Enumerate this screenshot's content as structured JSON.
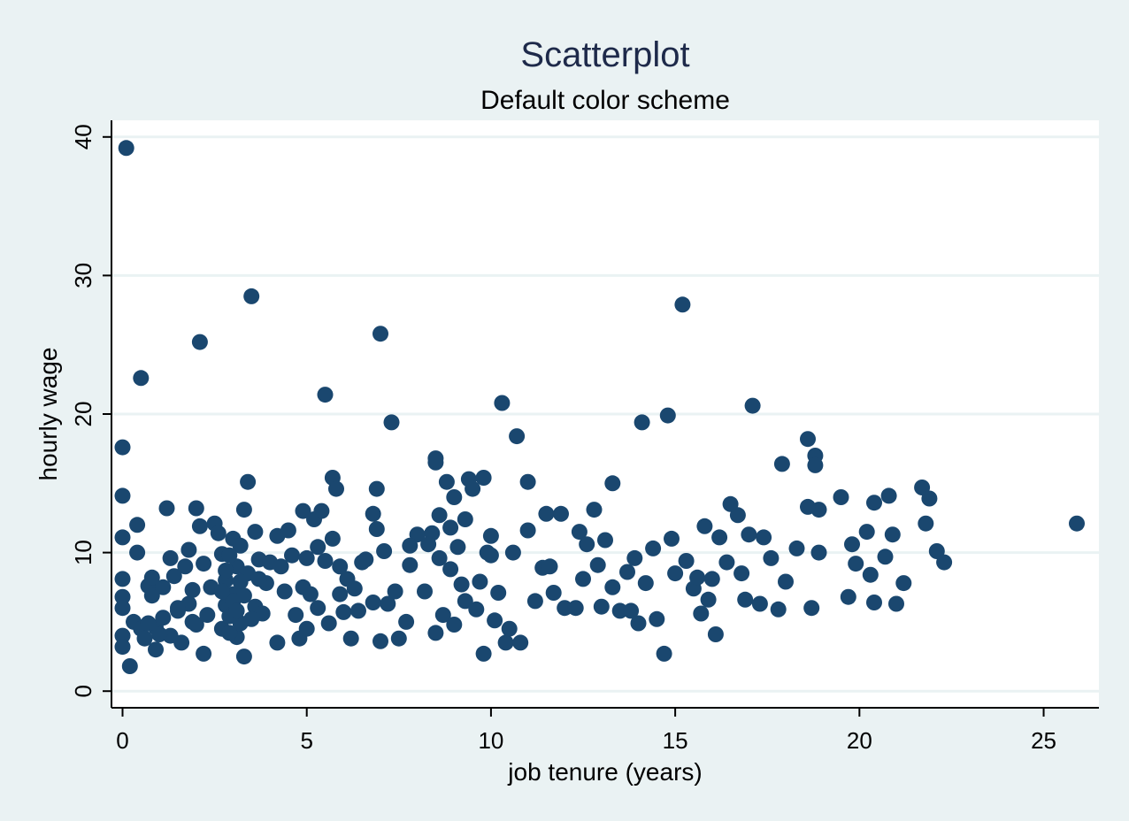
{
  "chart_data": {
    "type": "scatter",
    "title": "Scatterplot",
    "subtitle": "Default color scheme",
    "xlabel": "job tenure (years)",
    "ylabel": "hourly wage",
    "xlim": [
      -0.3,
      26.5
    ],
    "ylim": [
      -1.2,
      41.2
    ],
    "xticks": [
      "0",
      "5",
      "10",
      "15",
      "20",
      "25"
    ],
    "yticks": [
      "0",
      "10",
      "20",
      "30",
      "40"
    ],
    "grid": "horizontal",
    "legend": "none",
    "colors": {
      "background": "#eaf2f3",
      "plot_area": "#ffffff",
      "marker": "#1a476f",
      "title": "#1e2a4a",
      "gridline": "#eaf2f3"
    },
    "points": [
      [
        0.1,
        39.2
      ],
      [
        0.5,
        22.6
      ],
      [
        0.0,
        17.6
      ],
      [
        0.0,
        14.1
      ],
      [
        0.0,
        11.1
      ],
      [
        0.0,
        8.1
      ],
      [
        0.0,
        6.8
      ],
      [
        0.0,
        6.0
      ],
      [
        0.0,
        4.0
      ],
      [
        0.0,
        3.2
      ],
      [
        0.2,
        1.8
      ],
      [
        0.4,
        12.0
      ],
      [
        0.4,
        10.0
      ],
      [
        0.3,
        5.0
      ],
      [
        0.5,
        4.5
      ],
      [
        0.6,
        3.8
      ],
      [
        0.7,
        7.6
      ],
      [
        0.8,
        8.2
      ],
      [
        0.8,
        6.9
      ],
      [
        0.9,
        4.6
      ],
      [
        0.9,
        3.0
      ],
      [
        1.1,
        5.3
      ],
      [
        1.1,
        7.5
      ],
      [
        1.2,
        13.2
      ],
      [
        1.3,
        9.6
      ],
      [
        1.3,
        4.0
      ],
      [
        1.4,
        8.3
      ],
      [
        1.5,
        5.8
      ],
      [
        1.6,
        3.5
      ],
      [
        1.7,
        9.0
      ],
      [
        1.8,
        10.2
      ],
      [
        1.8,
        6.3
      ],
      [
        1.9,
        7.3
      ],
      [
        2.0,
        13.2
      ],
      [
        2.0,
        4.8
      ],
      [
        2.1,
        25.2
      ],
      [
        2.1,
        11.9
      ],
      [
        2.2,
        9.2
      ],
      [
        2.2,
        2.7
      ],
      [
        2.3,
        5.5
      ],
      [
        2.4,
        7.5
      ],
      [
        2.5,
        12.1
      ],
      [
        2.6,
        11.4
      ],
      [
        2.7,
        4.5
      ],
      [
        2.7,
        9.9
      ],
      [
        2.8,
        8.0
      ],
      [
        2.8,
        6.2
      ],
      [
        2.9,
        5.4
      ],
      [
        3.0,
        11.0
      ],
      [
        3.0,
        7.0
      ],
      [
        3.1,
        3.9
      ],
      [
        3.1,
        9.0
      ],
      [
        3.2,
        4.9
      ],
      [
        3.2,
        10.5
      ],
      [
        3.3,
        2.5
      ],
      [
        3.3,
        13.1
      ],
      [
        3.4,
        8.5
      ],
      [
        3.4,
        15.1
      ],
      [
        3.5,
        28.5
      ],
      [
        3.6,
        11.5
      ],
      [
        3.6,
        6.1
      ],
      [
        3.7,
        9.5
      ],
      [
        3.8,
        5.6
      ],
      [
        3.9,
        7.8
      ],
      [
        4.0,
        9.3
      ],
      [
        4.2,
        3.5
      ],
      [
        4.2,
        11.2
      ],
      [
        4.4,
        7.2
      ],
      [
        4.5,
        11.6
      ],
      [
        4.6,
        9.8
      ],
      [
        4.7,
        5.5
      ],
      [
        4.8,
        3.8
      ],
      [
        4.9,
        13.0
      ],
      [
        5.0,
        9.6
      ],
      [
        5.0,
        4.5
      ],
      [
        5.1,
        7.0
      ],
      [
        5.2,
        12.4
      ],
      [
        5.3,
        6.0
      ],
      [
        5.4,
        13.0
      ],
      [
        5.5,
        21.4
      ],
      [
        5.5,
        9.4
      ],
      [
        5.6,
        4.9
      ],
      [
        5.7,
        15.4
      ],
      [
        5.7,
        11.0
      ],
      [
        5.8,
        14.6
      ],
      [
        5.9,
        7.0
      ],
      [
        6.0,
        5.7
      ],
      [
        6.1,
        8.1
      ],
      [
        6.2,
        3.8
      ],
      [
        6.3,
        7.4
      ],
      [
        6.5,
        9.3
      ],
      [
        6.8,
        12.8
      ],
      [
        6.8,
        6.4
      ],
      [
        6.9,
        14.6
      ],
      [
        6.9,
        11.7
      ],
      [
        7.0,
        25.8
      ],
      [
        7.0,
        3.6
      ],
      [
        7.1,
        10.1
      ],
      [
        7.2,
        6.3
      ],
      [
        7.3,
        19.4
      ],
      [
        7.4,
        7.2
      ],
      [
        7.5,
        3.8
      ],
      [
        7.7,
        5.0
      ],
      [
        7.8,
        9.1
      ],
      [
        8.0,
        11.3
      ],
      [
        8.2,
        7.2
      ],
      [
        8.4,
        11.4
      ],
      [
        8.5,
        16.8
      ],
      [
        8.5,
        16.5
      ],
      [
        8.6,
        9.6
      ],
      [
        8.6,
        12.7
      ],
      [
        8.7,
        5.5
      ],
      [
        8.8,
        15.1
      ],
      [
        8.9,
        11.8
      ],
      [
        8.9,
        8.8
      ],
      [
        9.0,
        14.0
      ],
      [
        9.0,
        4.8
      ],
      [
        9.3,
        6.5
      ],
      [
        9.3,
        12.4
      ],
      [
        9.4,
        15.3
      ],
      [
        9.5,
        14.6
      ],
      [
        9.7,
        7.9
      ],
      [
        9.8,
        15.4
      ],
      [
        9.8,
        2.7
      ],
      [
        9.9,
        10.0
      ],
      [
        10.0,
        11.2
      ],
      [
        10.1,
        5.1
      ],
      [
        10.2,
        7.1
      ],
      [
        10.3,
        20.8
      ],
      [
        10.4,
        3.5
      ],
      [
        10.5,
        4.5
      ],
      [
        10.6,
        10.0
      ],
      [
        10.7,
        18.4
      ],
      [
        10.8,
        3.5
      ],
      [
        11.0,
        15.1
      ],
      [
        11.0,
        11.6
      ],
      [
        11.2,
        6.5
      ],
      [
        11.4,
        8.9
      ],
      [
        11.5,
        12.8
      ],
      [
        11.7,
        7.1
      ],
      [
        11.9,
        12.8
      ],
      [
        12.0,
        6.0
      ],
      [
        12.3,
        6.0
      ],
      [
        12.4,
        11.5
      ],
      [
        12.5,
        8.1
      ],
      [
        12.8,
        13.1
      ],
      [
        12.9,
        9.1
      ],
      [
        13.0,
        6.1
      ],
      [
        13.1,
        10.9
      ],
      [
        13.3,
        15.0
      ],
      [
        13.3,
        7.5
      ],
      [
        13.5,
        5.8
      ],
      [
        13.7,
        8.6
      ],
      [
        13.9,
        9.6
      ],
      [
        14.0,
        4.9
      ],
      [
        14.1,
        19.4
      ],
      [
        14.2,
        7.8
      ],
      [
        14.4,
        10.3
      ],
      [
        14.5,
        5.2
      ],
      [
        14.7,
        2.7
      ],
      [
        14.8,
        19.9
      ],
      [
        14.9,
        11.0
      ],
      [
        15.0,
        8.5
      ],
      [
        15.2,
        27.9
      ],
      [
        15.3,
        9.4
      ],
      [
        15.5,
        7.4
      ],
      [
        15.7,
        5.6
      ],
      [
        15.8,
        11.9
      ],
      [
        15.9,
        6.6
      ],
      [
        16.0,
        8.1
      ],
      [
        16.1,
        4.1
      ],
      [
        16.2,
        11.1
      ],
      [
        16.4,
        9.3
      ],
      [
        16.5,
        13.5
      ],
      [
        16.7,
        12.7
      ],
      [
        16.9,
        6.6
      ],
      [
        17.0,
        11.3
      ],
      [
        17.1,
        20.6
      ],
      [
        17.3,
        6.3
      ],
      [
        17.4,
        11.1
      ],
      [
        17.6,
        9.6
      ],
      [
        17.8,
        5.9
      ],
      [
        17.9,
        16.4
      ],
      [
        18.0,
        7.9
      ],
      [
        18.3,
        10.3
      ],
      [
        18.6,
        18.2
      ],
      [
        18.7,
        6.0
      ],
      [
        18.8,
        17.0
      ],
      [
        18.8,
        16.3
      ],
      [
        18.9,
        13.1
      ],
      [
        18.9,
        10.0
      ],
      [
        19.5,
        14.0
      ],
      [
        19.7,
        6.8
      ],
      [
        19.9,
        9.2
      ],
      [
        20.2,
        11.5
      ],
      [
        20.4,
        13.6
      ],
      [
        20.4,
        6.4
      ],
      [
        20.7,
        9.7
      ],
      [
        20.8,
        14.1
      ],
      [
        21.0,
        6.3
      ],
      [
        21.2,
        7.8
      ],
      [
        21.7,
        14.7
      ],
      [
        21.8,
        12.1
      ],
      [
        21.9,
        13.9
      ],
      [
        22.1,
        10.1
      ],
      [
        22.3,
        9.3
      ],
      [
        25.9,
        12.1
      ],
      [
        2.8,
        8.7
      ],
      [
        2.9,
        9.8
      ],
      [
        3.0,
        6.5
      ],
      [
        3.1,
        5.8
      ],
      [
        3.2,
        7.9
      ],
      [
        3.3,
        6.9
      ],
      [
        2.7,
        7.2
      ],
      [
        2.9,
        4.2
      ],
      [
        3.5,
        5.2
      ],
      [
        3.7,
        8.1
      ],
      [
        1.5,
        6.0
      ],
      [
        1.0,
        4.1
      ],
      [
        8.3,
        10.6
      ],
      [
        8.5,
        4.2
      ],
      [
        9.2,
        7.7
      ],
      [
        9.6,
        5.9
      ],
      [
        10.0,
        9.8
      ],
      [
        11.6,
        9.0
      ],
      [
        12.6,
        10.6
      ],
      [
        13.8,
        5.8
      ],
      [
        15.6,
        8.2
      ],
      [
        16.8,
        8.5
      ],
      [
        18.6,
        13.3
      ],
      [
        19.8,
        10.6
      ],
      [
        20.3,
        8.4
      ],
      [
        20.9,
        11.3
      ],
      [
        5.3,
        10.4
      ],
      [
        4.9,
        7.5
      ],
      [
        6.4,
        5.8
      ],
      [
        7.8,
        10.5
      ],
      [
        0.7,
        4.9
      ],
      [
        1.9,
        5.0
      ],
      [
        4.3,
        9.0
      ],
      [
        5.9,
        9.0
      ],
      [
        6.6,
        9.5
      ],
      [
        9.1,
        10.4
      ]
    ]
  }
}
